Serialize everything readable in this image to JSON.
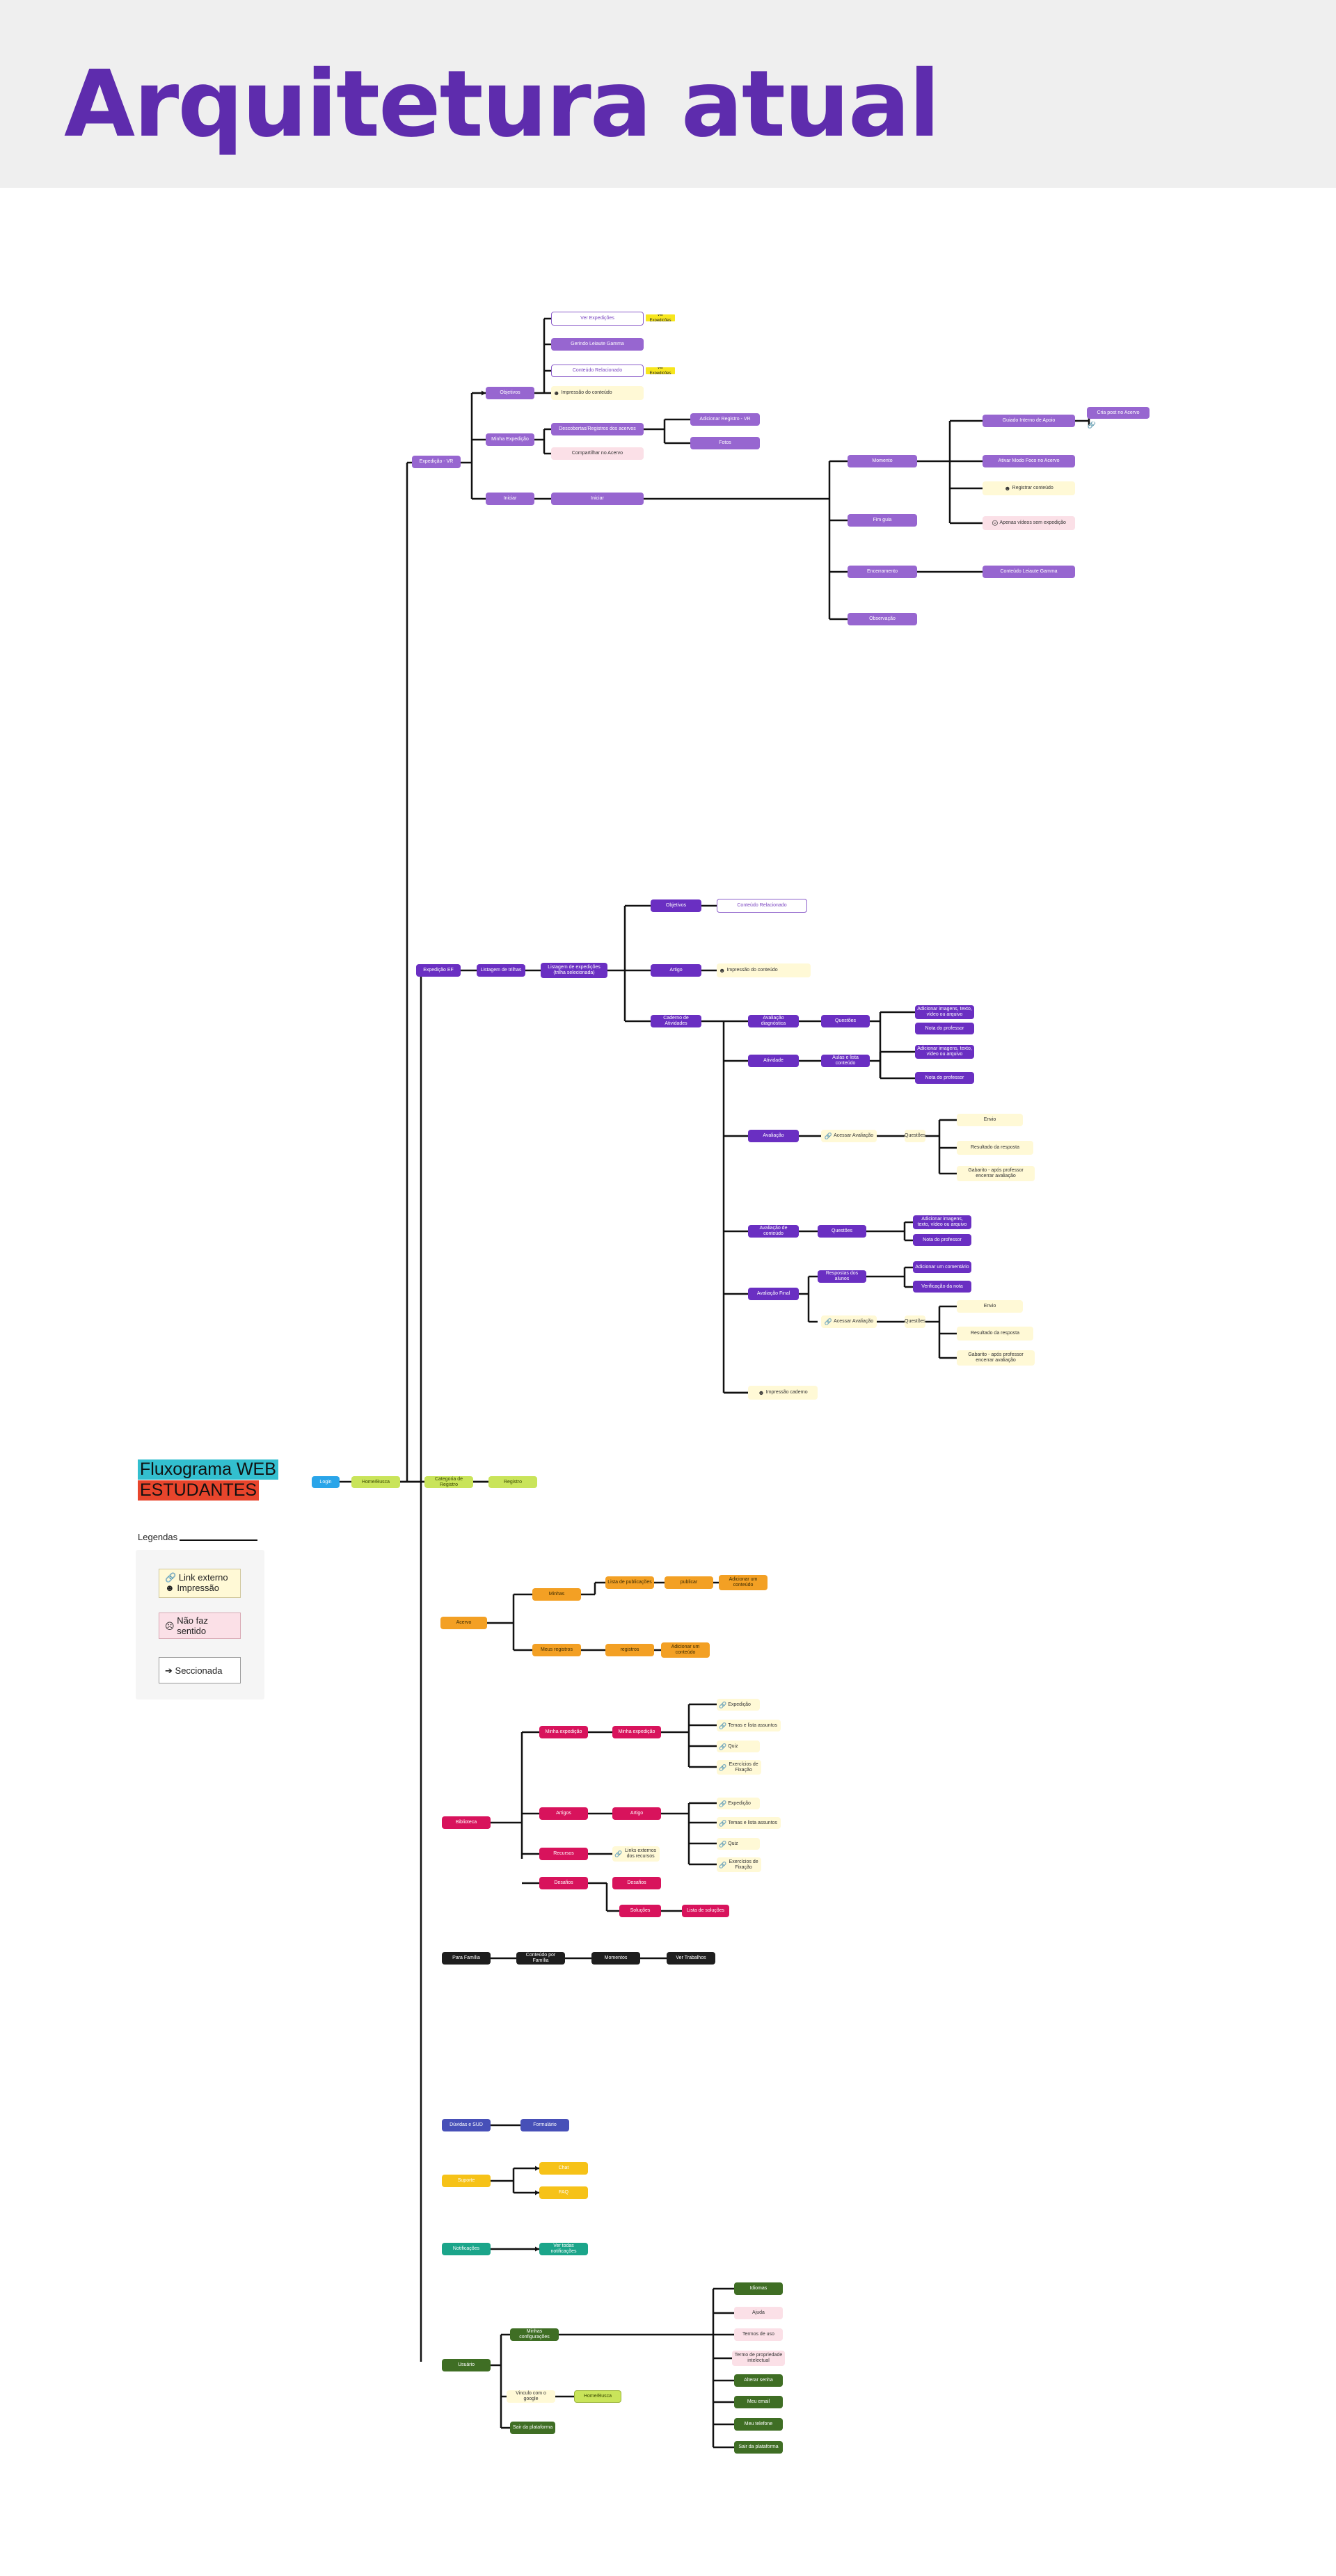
{
  "page": {
    "title": "Arquitetura atual"
  },
  "legend": {
    "title_line1": "Fluxograma WEB",
    "title_line2": "ESTUDANTES",
    "heading": "Legendas",
    "link_label": "Link externo",
    "impressao_label": "Impressão",
    "nao_faz_sentido_label": "Não faz sentido",
    "seccionada_label": "Seccionada"
  },
  "colors": {
    "title": "#5e2cad",
    "purple": "#6a2fc2",
    "orange": "#f3a024",
    "magenta": "#d8135c",
    "black": "#1e1e1e",
    "blue": "#4750b8",
    "yellow": "#f6c218",
    "teal": "#1ba58a",
    "green": "#3f6e24",
    "lime": "#c9e45a",
    "cyan": "#2aa5e9",
    "note": "#fff9d6",
    "pink": "#fbe0e7"
  },
  "nodes": {
    "login": "Login",
    "home": "Home/Busca",
    "categoria_registro": "Categoria de Registro",
    "registro": "Registro",
    "exp_vr": "Expedição - VR",
    "objetivos_vr": "Objetivos",
    "pix_vr": "Ver Expedições",
    "gerindo_vr": "Gerindo Leiaute Gamma",
    "concluido_vr": "Conteúdo Relacionado",
    "impressao_vr": "Impressão do conteúdo",
    "hl1": "Ver Expedições",
    "hl2": "Ver Expedições",
    "minha_vr": "Minha Expedição",
    "descobertas_vr": "Descobertas/Registros dos acervos",
    "compartilhar_vr": "Compartilhar no Acervo",
    "adicionar_registro": "Adicionar Registro - VR",
    "fotos_vr": "Fotos",
    "iniciar_vr": "Iniciar",
    "ivr": "Iniciar",
    "momento_vr": "Momento",
    "vr_guiado": "Guiado Interno de Apoio",
    "cria_post": "Cria post no Acervo",
    "ativar_vr": "Ativar Modo Foco no Acervo",
    "registrar_vr": "Registrar conteúdo",
    "apenas_vr": "Apenas vídeos sem expedição",
    "fim_vr": "Fim guia",
    "encerrar_vr": "Encerramento",
    "concluido2_vr": "Conteúdo Leiaute Gamma",
    "obs_vr": "Observação",
    "exp_ef": "Expedição EF",
    "listagem_trilhas": "Listagem de trilhas",
    "listagem_exp": "Listagem de expedições (trilha selecionada)",
    "objetivos_ef": "Objetivos",
    "objetivos_ef_link": "Conteúdo Relacionado",
    "artigo_ef": "Artigo",
    "impressao_ef": "Impressão do conteúdo",
    "caderno_ef": "Caderno de Atividades",
    "aval_diag": "Avaliação diagnóstica",
    "questoes1": "Questões",
    "add_img1": "Adicionar imagens, texto, vídeo ou arquivo",
    "nota_prof1": "Nota do professor",
    "atividade_ef": "Atividade",
    "aulas_lidas": "Aulas e lista conteúdo",
    "add_img2": "Adicionar imagens, texto, vídeo ou arquivo",
    "nota_prof2": "Nota do professor",
    "avaliacao_ef": "Avaliação",
    "acessar_aval1": "Acessar Avaliação",
    "questoes_a": "Questões",
    "envio_a": "Envio",
    "resultado_a": "Resultado da resposta",
    "gabarito_a": "Gabarito - após professor encerrar avaliação",
    "aval_conteudo": "Avaliação de conteúdo",
    "questoes2": "Questões",
    "add_img3": "Adicionar imagens, texto, vídeo ou arquivo",
    "nota_prof3": "Nota do professor",
    "aval_final": "Avaliação Final",
    "resp_aluno": "Respostas dos alunos",
    "add_comentario": "Adicionar um comentário",
    "verificacao": "Verificação da nota",
    "acessar_aval2": "Acessar Avaliação",
    "questoes_b": "Questões",
    "envio_b": "Envio",
    "resultado_b": "Resultado da resposta",
    "gabarito_b": "Gabarito - após professor encerrar avaliação",
    "impressao_cad": "Impressão caderno",
    "acervo": "Acervo",
    "minhas_pub": "Minhas",
    "lista_pub": "Lista de publicações",
    "publicar": "publicar",
    "adicionar_conteudo1": "Adicionar um conteúdo",
    "meus_registros": "Meus registros",
    "registro2": "registros",
    "adicionar_conteudo2": "Adicionar um conteúdo",
    "biblioteca": "Biblioteca",
    "minha_expedicao": "Minha expedição",
    "minha_exp2": "Minha expedição",
    "exp_m1": "Expedição",
    "temas_m1": "Temas e lista assuntos",
    "quiz_m1": "Quiz",
    "exercicios_m1": "Exercícios de Fixação",
    "artigos_m": "Artigos",
    "artigo_m": "Artigo",
    "exp_m2": "Expedição",
    "temas_m2": "Temas e lista assuntos",
    "quiz_m2": "Quiz",
    "exercicios_m2": "Exercícios de Fixação",
    "recursos_m": "Recursos",
    "links_m": "Links externos dos recursos",
    "desafios_m": "Desafios",
    "desafios_m2": "Desafios",
    "solucoes_m": "Soluções",
    "lista_solucoes": "Lista de soluções",
    "para_familia": "Para Família",
    "conteudo_familia": "Conteúdo por Família",
    "momentos": "Momentos",
    "ver_trabalhos": "Ver Trabalhos",
    "duvidas": "Dúvidas e SUD",
    "formulario": "Formulário",
    "suporte": "Suporte",
    "chat": "Chat",
    "faq": "FAQ",
    "notificacoes": "Notificações",
    "ver_notificacoes": "Ver todas notificações",
    "usuario": "Usuário",
    "minhas_config": "Minhas configurações",
    "idiomas": "Idiomas",
    "ajuda": "Ajuda",
    "termos_uso": "Termos de uso",
    "termo_prop": "Termo de propriedade intelectual",
    "alterar_senha": "Alterar senha",
    "meu_email": "Meu email",
    "meu_telefone": "Meu telefone",
    "sair_plataforma1": "Sair da plataforma",
    "vinculo_google": "Vinculo com o google",
    "home_busca2": "Home/Busca",
    "sair_plataforma2": "Sair da plataforma"
  }
}
